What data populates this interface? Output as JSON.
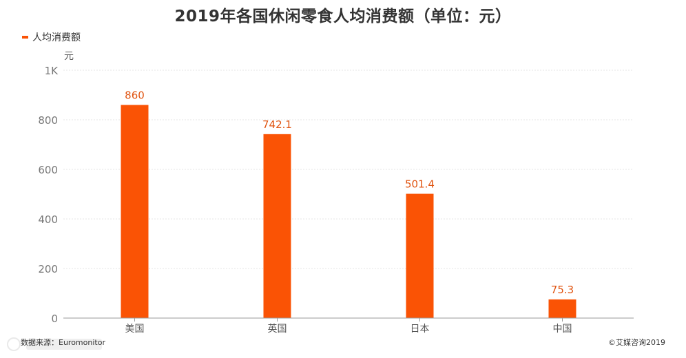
{
  "chart_data": {
    "type": "bar",
    "title": "2019年各国休闲零食人均消费额（单位：元）",
    "ylabel": "元",
    "xlabel": "",
    "categories": [
      "美国",
      "英国",
      "日本",
      "中国"
    ],
    "series": [
      {
        "name": "人均消费额",
        "values": [
          860,
          742.1,
          501.4,
          75.3
        ]
      }
    ],
    "data_labels": [
      "860",
      "742.1",
      "501.4",
      "75.3"
    ],
    "ylim": [
      0,
      1000
    ],
    "y_ticks": [
      0,
      200,
      400,
      600,
      800,
      1000
    ],
    "y_tick_labels": [
      "0",
      "200",
      "400",
      "600",
      "800",
      "1K"
    ],
    "grid": true,
    "legend_position": "top-left",
    "bar_color": "#fa5305",
    "label_color": "#e0530f"
  },
  "footer": {
    "source": "数据来源：Euromonitor",
    "copyright": "©艾媒咨询2019"
  }
}
